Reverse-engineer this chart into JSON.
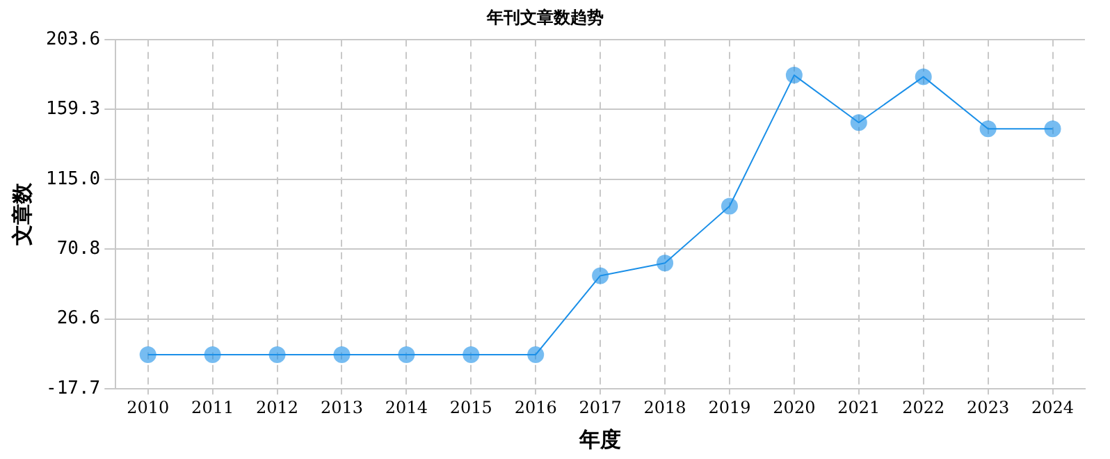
{
  "chart_data": {
    "type": "line",
    "title": "年刊文章数趋势",
    "xlabel": "年度",
    "ylabel": "文章数",
    "categories": [
      "2010",
      "2011",
      "2012",
      "2013",
      "2014",
      "2015",
      "2016",
      "2017",
      "2018",
      "2019",
      "2020",
      "2021",
      "2022",
      "2023",
      "2024"
    ],
    "series": [
      {
        "color": "#1a8fe8",
        "values": [
          4,
          4,
          4,
          4,
          4,
          4,
          4,
          54,
          62,
          98,
          181,
          151,
          180,
          147,
          147
        ]
      }
    ],
    "ylim": [
      -17.7,
      203.6
    ],
    "yticks": [
      {
        "value": -17.7,
        "label": "-17.7"
      },
      {
        "value": 26.6,
        "label": "26.6"
      },
      {
        "value": 70.8,
        "label": "70.8"
      },
      {
        "value": 115.0,
        "label": "115.0"
      },
      {
        "value": 159.3,
        "label": "159.3"
      },
      {
        "value": 203.6,
        "label": "203.6"
      }
    ],
    "grid": true,
    "marker": "circle",
    "line_style": "solid"
  }
}
